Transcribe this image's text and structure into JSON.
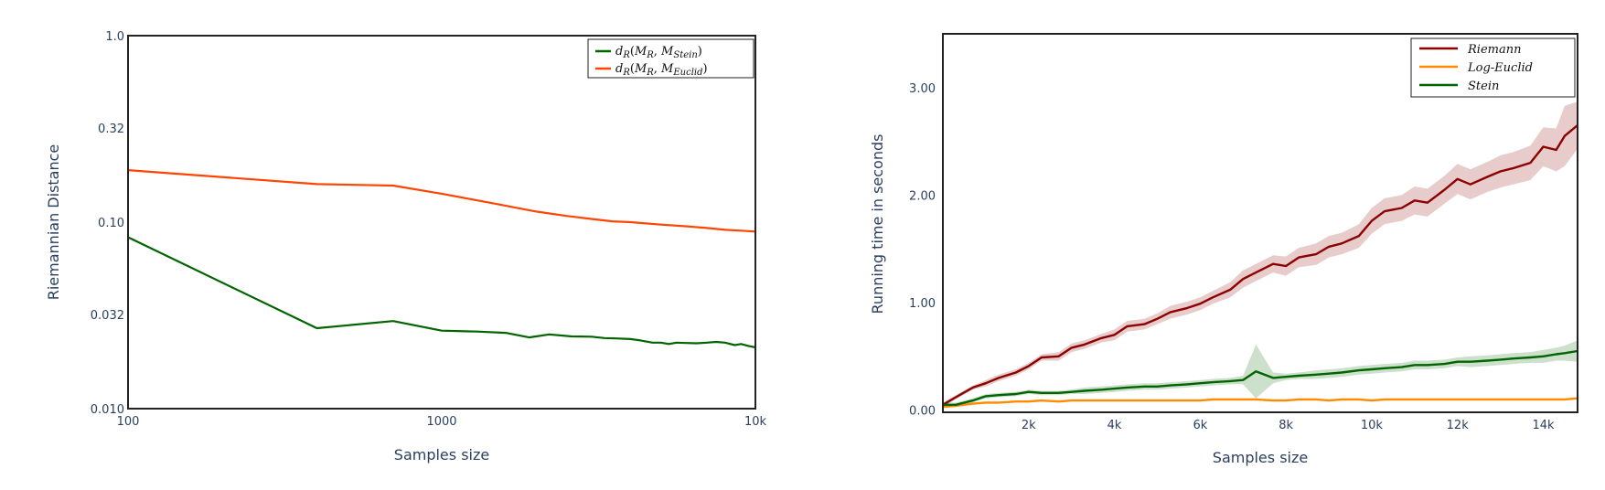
{
  "chart_data": [
    {
      "type": "line",
      "title": "",
      "xlabel": "Samples size",
      "ylabel": "Riemannian Distance",
      "x_scale": "log",
      "y_scale": "log",
      "xlim": [
        100,
        10000
      ],
      "ylim": [
        0.01,
        1.0
      ],
      "x_ticks": [
        100,
        1000,
        10000
      ],
      "x_tick_labels": [
        "100",
        "1000",
        "10k"
      ],
      "y_ticks": [
        0.01,
        0.032,
        0.1,
        0.32,
        1.0
      ],
      "y_tick_labels": [
        "0.010",
        "0.032",
        "0.10",
        "0.32",
        "1.0"
      ],
      "grid": false,
      "legend_position": "top-right",
      "series": [
        {
          "name": "d_R(M_R, M_Stein)",
          "legend": {
            "d": "d",
            "R1": "R",
            "open": "(",
            "M1": "M",
            "R2": "R",
            "comma": ", ",
            "M2": "M",
            "sub": "Stein",
            "close": ")"
          },
          "color": "#006400",
          "x": [
            100,
            400,
            700,
            1000,
            1300,
            1600,
            1900,
            2200,
            2600,
            3000,
            3300,
            3600,
            4000,
            4300,
            4700,
            5000,
            5300,
            5600,
            6000,
            6500,
            7000,
            7500,
            8000,
            8600,
            9000,
            9500,
            10000
          ],
          "y": [
            0.083,
            0.027,
            0.0295,
            0.0262,
            0.0259,
            0.0255,
            0.0241,
            0.025,
            0.0244,
            0.0243,
            0.0239,
            0.0238,
            0.0236,
            0.0232,
            0.0226,
            0.0226,
            0.0222,
            0.0226,
            0.0225,
            0.0224,
            0.0226,
            0.0228,
            0.0226,
            0.0219,
            0.0222,
            0.0217,
            0.0213
          ]
        },
        {
          "name": "d_R(M_R, M_Euclid)",
          "legend": {
            "d": "d",
            "R1": "R",
            "open": "(",
            "M1": "M",
            "R2": "R",
            "comma": ", ",
            "M2": "M",
            "sub": "Euclid",
            "close": ")"
          },
          "color": "#ff4500",
          "x": [
            100,
            400,
            700,
            1000,
            1500,
            2000,
            2500,
            3000,
            3500,
            4000,
            5000,
            6000,
            7000,
            8000,
            9000,
            10000
          ],
          "y": [
            0.19,
            0.16,
            0.157,
            0.142,
            0.125,
            0.114,
            0.108,
            0.104,
            0.101,
            0.1,
            0.097,
            0.095,
            0.093,
            0.091,
            0.09,
            0.089
          ]
        }
      ]
    },
    {
      "type": "line",
      "title": "",
      "xlabel": "Samples size",
      "ylabel": "Running time in seconds",
      "xlim": [
        0,
        14800
      ],
      "ylim": [
        -0.02,
        3.5
      ],
      "x_ticks": [
        2000,
        4000,
        6000,
        8000,
        10000,
        12000,
        14000
      ],
      "x_tick_labels": [
        "2k",
        "4k",
        "6k",
        "8k",
        "10k",
        "12k",
        "14k"
      ],
      "y_ticks": [
        0,
        1,
        2,
        3
      ],
      "y_tick_labels": [
        "0.00",
        "1.00",
        "2.00",
        "3.00"
      ],
      "grid": false,
      "legend_position": "top-right",
      "x": [
        0,
        300,
        700,
        1000,
        1300,
        1700,
        2000,
        2300,
        2700,
        3000,
        3300,
        3700,
        4000,
        4300,
        4700,
        5000,
        5300,
        5700,
        6000,
        6300,
        6700,
        7000,
        7300,
        7700,
        8000,
        8300,
        8700,
        9000,
        9300,
        9700,
        10000,
        10300,
        10700,
        11000,
        11300,
        11700,
        12000,
        12300,
        12700,
        13000,
        13300,
        13700,
        14000,
        14300,
        14500,
        14800
      ],
      "series": [
        {
          "name": "Riemann",
          "color": "#8b0000",
          "band_color": "rgba(139,0,0,0.2)",
          "y": [
            0.05,
            0.12,
            0.21,
            0.25,
            0.3,
            0.35,
            0.41,
            0.49,
            0.5,
            0.58,
            0.61,
            0.67,
            0.7,
            0.78,
            0.8,
            0.85,
            0.91,
            0.95,
            0.99,
            1.05,
            1.12,
            1.22,
            1.28,
            1.36,
            1.34,
            1.42,
            1.45,
            1.52,
            1.55,
            1.62,
            1.76,
            1.85,
            1.88,
            1.95,
            1.93,
            2.05,
            2.15,
            2.1,
            2.17,
            2.22,
            2.25,
            2.3,
            2.45,
            2.42,
            2.55,
            2.65
          ],
          "band": [
            0.02,
            0.02,
            0.02,
            0.03,
            0.03,
            0.03,
            0.03,
            0.03,
            0.04,
            0.04,
            0.04,
            0.04,
            0.05,
            0.05,
            0.05,
            0.05,
            0.06,
            0.06,
            0.06,
            0.06,
            0.07,
            0.08,
            0.08,
            0.08,
            0.09,
            0.09,
            0.1,
            0.1,
            0.1,
            0.11,
            0.12,
            0.12,
            0.12,
            0.13,
            0.13,
            0.13,
            0.14,
            0.14,
            0.14,
            0.15,
            0.15,
            0.16,
            0.18,
            0.2,
            0.28,
            0.22
          ]
        },
        {
          "name": "Log-Euclid",
          "color": "#ff8c00",
          "band_color": "rgba(255,140,0,0.2)",
          "y": [
            0.03,
            0.04,
            0.06,
            0.07,
            0.07,
            0.08,
            0.08,
            0.09,
            0.08,
            0.09,
            0.09,
            0.09,
            0.09,
            0.09,
            0.09,
            0.09,
            0.09,
            0.09,
            0.09,
            0.1,
            0.1,
            0.1,
            0.1,
            0.09,
            0.09,
            0.1,
            0.1,
            0.09,
            0.1,
            0.1,
            0.09,
            0.1,
            0.1,
            0.1,
            0.1,
            0.1,
            0.1,
            0.1,
            0.1,
            0.1,
            0.1,
            0.1,
            0.1,
            0.1,
            0.1,
            0.11
          ],
          "band": [
            0.01,
            0.01,
            0.01,
            0.01,
            0.01,
            0.01,
            0.01,
            0.01,
            0.01,
            0.01,
            0.01,
            0.01,
            0.01,
            0.01,
            0.01,
            0.01,
            0.01,
            0.01,
            0.01,
            0.01,
            0.01,
            0.01,
            0.01,
            0.01,
            0.01,
            0.01,
            0.01,
            0.01,
            0.01,
            0.01,
            0.01,
            0.01,
            0.01,
            0.01,
            0.01,
            0.01,
            0.01,
            0.01,
            0.01,
            0.01,
            0.01,
            0.01,
            0.01,
            0.01,
            0.01,
            0.01
          ]
        },
        {
          "name": "Stein",
          "color": "#006400",
          "band_color": "rgba(0,100,0,0.2)",
          "y": [
            0.05,
            0.05,
            0.09,
            0.13,
            0.14,
            0.15,
            0.17,
            0.16,
            0.16,
            0.17,
            0.18,
            0.19,
            0.2,
            0.21,
            0.22,
            0.22,
            0.23,
            0.24,
            0.25,
            0.26,
            0.27,
            0.28,
            0.36,
            0.3,
            0.31,
            0.32,
            0.33,
            0.34,
            0.35,
            0.37,
            0.38,
            0.39,
            0.4,
            0.42,
            0.42,
            0.43,
            0.45,
            0.45,
            0.46,
            0.47,
            0.48,
            0.49,
            0.5,
            0.52,
            0.53,
            0.55
          ],
          "band": [
            0.02,
            0.02,
            0.02,
            0.02,
            0.02,
            0.02,
            0.02,
            0.02,
            0.02,
            0.02,
            0.03,
            0.03,
            0.03,
            0.03,
            0.03,
            0.03,
            0.03,
            0.03,
            0.03,
            0.03,
            0.03,
            0.04,
            0.25,
            0.05,
            0.03,
            0.03,
            0.04,
            0.04,
            0.04,
            0.04,
            0.04,
            0.04,
            0.04,
            0.04,
            0.04,
            0.04,
            0.04,
            0.05,
            0.05,
            0.05,
            0.05,
            0.05,
            0.06,
            0.06,
            0.07,
            0.1
          ]
        }
      ]
    }
  ]
}
